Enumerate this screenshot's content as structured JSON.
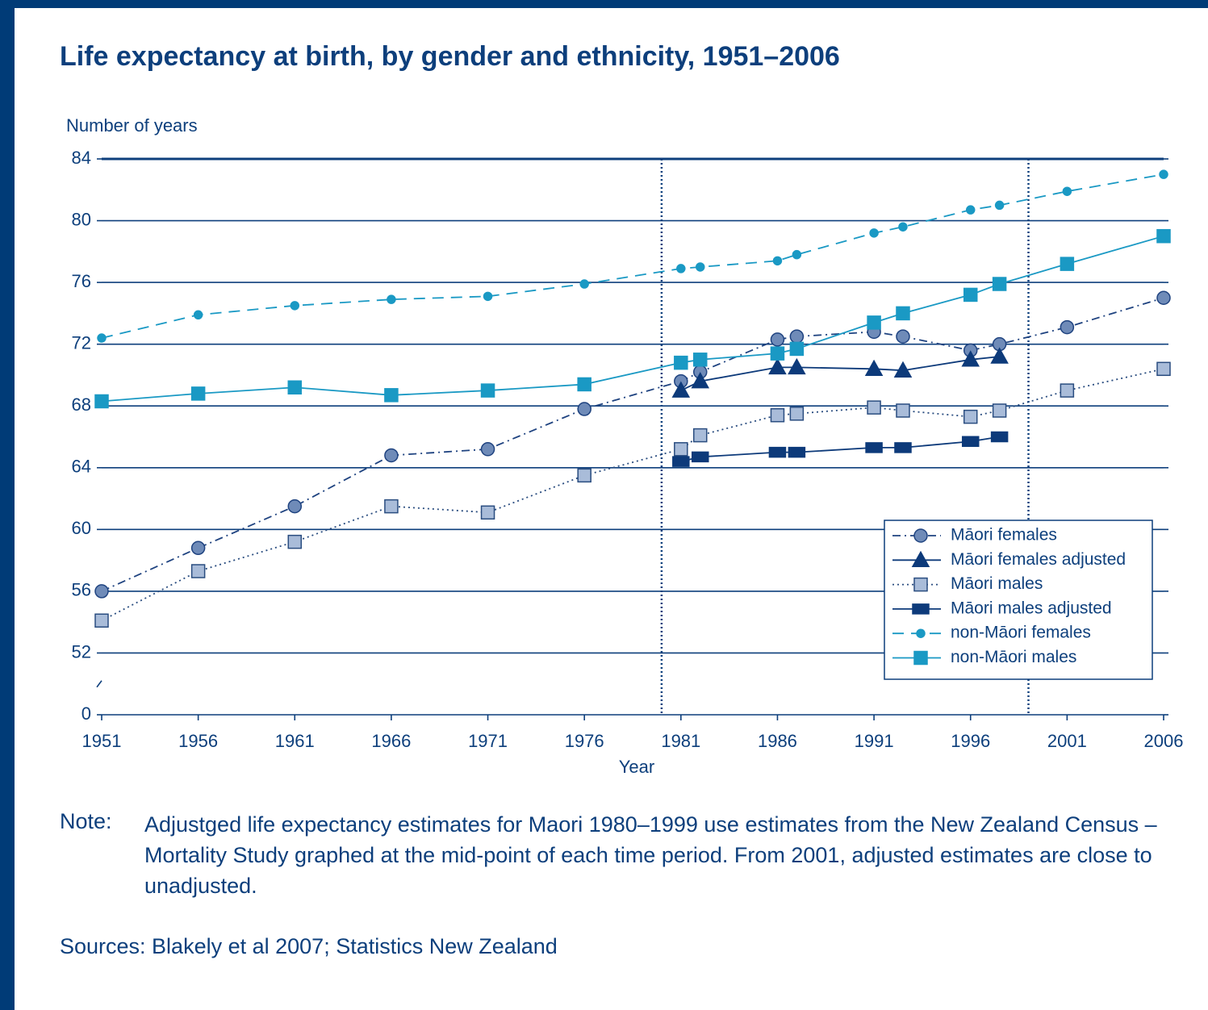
{
  "chart_data": {
    "type": "line",
    "title": "Life expectancy at birth, by gender and ethnicity, 1951–2006",
    "y_label": "Number of years",
    "x_label": "Year",
    "x": [
      1951,
      1956,
      1961,
      1966,
      1971,
      1976,
      1981,
      1982,
      1986,
      1987,
      1991,
      1992.5,
      1996,
      1997.5,
      2001,
      2006
    ],
    "xlim": [
      1951,
      2006
    ],
    "xticks": [
      1951,
      1956,
      1961,
      1966,
      1971,
      1976,
      1981,
      1986,
      1991,
      1996,
      2001,
      2006
    ],
    "ylim": [
      0,
      84
    ],
    "yticks": [
      0,
      52,
      56,
      60,
      64,
      68,
      72,
      76,
      80,
      84
    ],
    "y_axis_break": true,
    "vlines": [
      1980,
      1999
    ],
    "grid": true,
    "legend": "lower right",
    "series": [
      {
        "name": "Māori females",
        "color": "#1f4380",
        "marker": "circle",
        "marker_fill": "#6f8bb8",
        "dash": "dashdot",
        "values": [
          56.0,
          58.8,
          61.5,
          64.8,
          65.2,
          67.8,
          69.6,
          70.2,
          72.3,
          72.5,
          72.8,
          72.5,
          71.6,
          72.0,
          73.1,
          75.0
        ]
      },
      {
        "name": "Māori females adjusted",
        "color": "#0d3a7a",
        "marker": "triangle",
        "marker_fill": "#0d3a7a",
        "dash": "solid",
        "x": [
          1981,
          1982,
          1986,
          1987,
          1991,
          1992.5,
          1996,
          1997.5
        ],
        "values": [
          69.0,
          69.6,
          70.5,
          70.5,
          70.4,
          70.3,
          71.0,
          71.2
        ]
      },
      {
        "name": "Māori males",
        "color": "#2a4d80",
        "marker": "square",
        "marker_fill": "#a9bcd9",
        "dash": "dotted",
        "values": [
          54.1,
          57.3,
          59.2,
          61.5,
          61.1,
          63.5,
          65.2,
          66.1,
          67.4,
          67.5,
          67.9,
          67.7,
          67.3,
          67.7,
          69.0,
          70.4
        ]
      },
      {
        "name": "Māori males adjusted",
        "color": "#0d3a7a",
        "marker": "bar",
        "marker_fill": "#0d3a7a",
        "dash": "solid",
        "x": [
          1981,
          1982,
          1986,
          1987,
          1991,
          1992.5,
          1996,
          1997.5
        ],
        "values": [
          64.4,
          64.7,
          65.0,
          65.0,
          65.3,
          65.3,
          65.7,
          66.0
        ]
      },
      {
        "name": "non-Māori females",
        "color": "#1a99c4",
        "marker": "dot",
        "marker_fill": "#1a99c4",
        "dash": "dashed",
        "values": [
          72.4,
          73.9,
          74.5,
          74.9,
          75.1,
          75.9,
          76.9,
          77.0,
          77.4,
          77.8,
          79.2,
          79.6,
          80.7,
          81.0,
          81.9,
          83.0
        ]
      },
      {
        "name": "non-Māori males",
        "color": "#1a99c4",
        "marker": "square",
        "marker_fill": "#1a99c4",
        "dash": "solid",
        "values": [
          68.3,
          68.8,
          69.2,
          68.7,
          69.0,
          69.4,
          70.8,
          71.0,
          71.4,
          71.7,
          73.4,
          74.0,
          75.2,
          75.9,
          77.2,
          79.0
        ]
      }
    ]
  },
  "note_label": "Note:",
  "note": "Adjustged life expectancy estimates for Maori 1980–1999 use estimates from the New Zealand Census – Mortality Study graphed at the mid-point of each time period. From 2001, adjusted estimates are close to unadjusted.",
  "sources": "Sources: Blakely et al 2007; Statistics New Zealand"
}
